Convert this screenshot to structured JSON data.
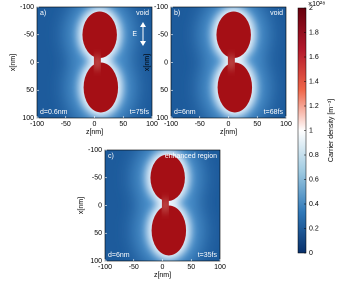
{
  "chart_data": [
    {
      "type": "heatmap",
      "panel_label": "a)",
      "annotation": "void",
      "gap_label": "d=0.6nm",
      "time_label": "t=75fs",
      "field_label": "E",
      "xlabel": "z[nm]",
      "ylabel": "x[nm]",
      "xlim": [
        -100,
        100
      ],
      "ylim": [
        -100,
        100
      ],
      "y_inverted": true,
      "xticks": [
        -100,
        -50,
        0,
        50,
        100
      ],
      "yticks": [
        -100,
        -50,
        0,
        50,
        100
      ]
    },
    {
      "type": "heatmap",
      "panel_label": "b)",
      "annotation": "void",
      "gap_label": "d=6nm",
      "time_label": "t=68fs",
      "xlabel": "z[nm]",
      "ylabel": "x[nm]",
      "xlim": [
        -100,
        100
      ],
      "ylim": [
        -100,
        100
      ],
      "y_inverted": true,
      "xticks": [
        -100,
        -50,
        0,
        50,
        100
      ],
      "yticks": [
        -100,
        -50,
        0,
        50,
        100
      ]
    },
    {
      "type": "heatmap",
      "panel_label": "c)",
      "annotation": "enhanced region",
      "gap_label": "d=6nm",
      "time_label": "t=35fs",
      "xlabel": "z[nm]",
      "ylabel": "x[nm]",
      "xlim": [
        -100,
        100
      ],
      "ylim": [
        -100,
        100
      ],
      "y_inverted": true,
      "xticks": [
        -100,
        -50,
        0,
        50,
        100
      ],
      "yticks": [
        -100,
        -50,
        0,
        50,
        100
      ]
    }
  ],
  "colorbar": {
    "label": "Carrier density [m⁻³]",
    "multiplier": "×10²⁸",
    "clim": [
      0,
      2
    ],
    "ticks": [
      0,
      0.2,
      0.4,
      0.6,
      0.8,
      1,
      1.2,
      1.4,
      1.6,
      1.8,
      2
    ],
    "colors": [
      "#08306b",
      "#2f78b8",
      "#9ecae1",
      "#ffffff",
      "#ef6548",
      "#b2182b",
      "#67000d"
    ]
  }
}
